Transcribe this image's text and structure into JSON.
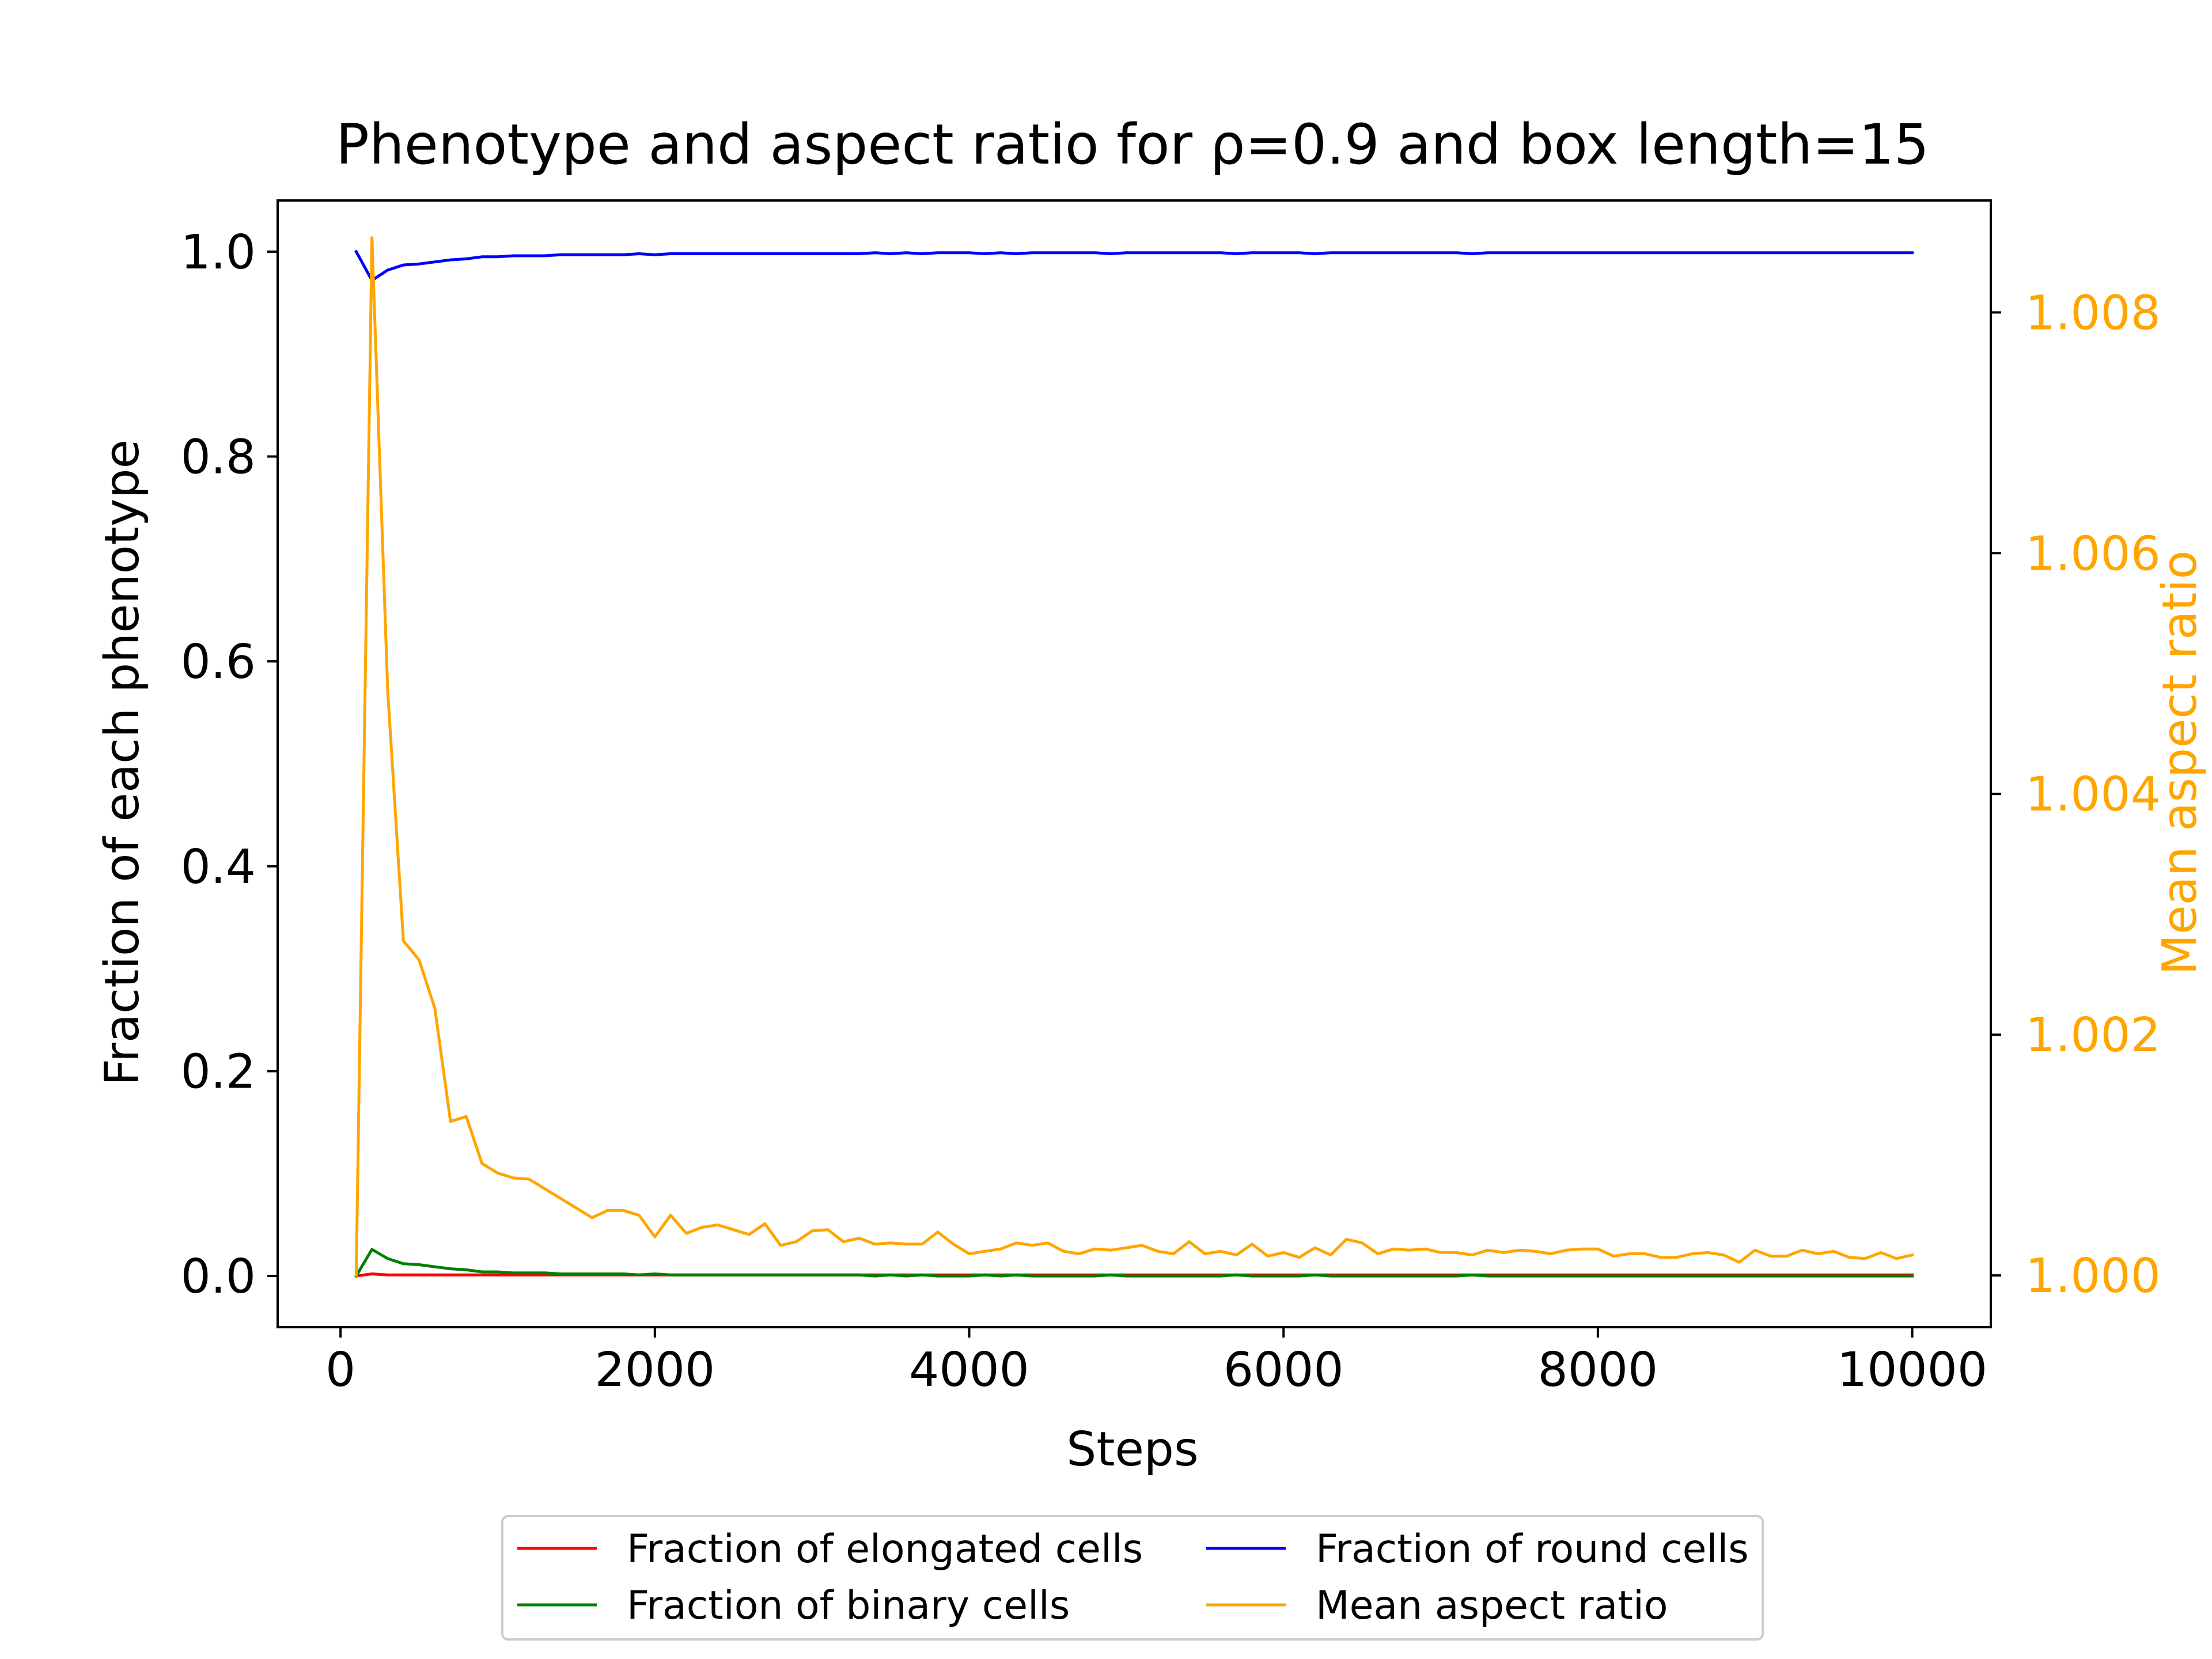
{
  "chart_data": {
    "type": "line",
    "title": "Phenotype and aspect ratio for ρ=0.9 and box length=15",
    "xlabel": "Steps",
    "ylabel": "Fraction of each phenotype",
    "y2label": "Mean aspect ratio",
    "xlim": [
      -400,
      10500
    ],
    "ylim": [
      -0.05,
      1.05
    ],
    "y2lim": [
      0.99957,
      1.00893
    ],
    "xticks": [
      0,
      2000,
      4000,
      6000,
      8000,
      10000
    ],
    "xtick_labels": [
      "0",
      "2000",
      "4000",
      "6000",
      "8000",
      "10000"
    ],
    "yticks": [
      0.0,
      0.2,
      0.4,
      0.6,
      0.8,
      1.0
    ],
    "ytick_labels": [
      "0.0",
      "0.2",
      "0.4",
      "0.6",
      "0.8",
      "1.0"
    ],
    "y2ticks": [
      1.0,
      1.002,
      1.004,
      1.006,
      1.008
    ],
    "y2tick_labels": [
      "1.000",
      "1.002",
      "1.004",
      "1.006",
      "1.008"
    ],
    "grid": false,
    "legend_position": "bottom-center-outside",
    "x_start": 100,
    "x_step": 100,
    "series": [
      {
        "name": "Fraction of elongated cells",
        "color": "#ff0000",
        "axis": "left",
        "values": [
          0.0,
          0.002,
          0.001,
          0.001,
          0.001,
          0.001,
          0.001,
          0.001,
          0.001,
          0.001,
          0.001,
          0.001,
          0.001,
          0.001,
          0.001,
          0.001,
          0.001,
          0.001,
          0.001,
          0.001,
          0.001,
          0.001,
          0.001,
          0.001,
          0.001,
          0.001,
          0.001,
          0.001,
          0.001,
          0.001,
          0.001,
          0.001,
          0.001,
          0.001,
          0.001,
          0.001,
          0.001,
          0.001,
          0.001,
          0.001,
          0.001,
          0.001,
          0.001,
          0.001,
          0.001,
          0.001,
          0.001,
          0.001,
          0.001,
          0.001,
          0.001,
          0.001,
          0.001,
          0.001,
          0.001,
          0.001,
          0.001,
          0.001,
          0.001,
          0.001,
          0.001,
          0.001,
          0.001,
          0.001,
          0.001,
          0.001,
          0.001,
          0.001,
          0.001,
          0.001,
          0.001,
          0.001,
          0.001,
          0.001,
          0.001,
          0.001,
          0.001,
          0.001,
          0.001,
          0.001,
          0.001,
          0.001,
          0.001,
          0.001,
          0.001,
          0.001,
          0.001,
          0.001,
          0.001,
          0.001,
          0.001,
          0.001,
          0.001,
          0.001,
          0.001,
          0.001,
          0.001,
          0.001,
          0.001,
          0.001
        ]
      },
      {
        "name": "Fraction of round cells",
        "color": "#0000ff",
        "axis": "left",
        "values": [
          1.0,
          0.972,
          0.982,
          0.987,
          0.988,
          0.99,
          0.992,
          0.993,
          0.995,
          0.995,
          0.996,
          0.996,
          0.996,
          0.997,
          0.997,
          0.997,
          0.997,
          0.997,
          0.998,
          0.997,
          0.998,
          0.998,
          0.998,
          0.998,
          0.998,
          0.998,
          0.998,
          0.998,
          0.998,
          0.998,
          0.998,
          0.998,
          0.998,
          0.999,
          0.998,
          0.999,
          0.998,
          0.999,
          0.999,
          0.999,
          0.998,
          0.999,
          0.998,
          0.999,
          0.999,
          0.999,
          0.999,
          0.999,
          0.998,
          0.999,
          0.999,
          0.999,
          0.999,
          0.999,
          0.999,
          0.999,
          0.998,
          0.999,
          0.999,
          0.999,
          0.999,
          0.998,
          0.999,
          0.999,
          0.999,
          0.999,
          0.999,
          0.999,
          0.999,
          0.999,
          0.999,
          0.998,
          0.999,
          0.999,
          0.999,
          0.999,
          0.999,
          0.999,
          0.999,
          0.999,
          0.999,
          0.999,
          0.999,
          0.999,
          0.999,
          0.999,
          0.999,
          0.999,
          0.999,
          0.999,
          0.999,
          0.999,
          0.999,
          0.999,
          0.999,
          0.999,
          0.999,
          0.999,
          0.999,
          0.999
        ]
      },
      {
        "name": "Fraction of binary cells",
        "color": "#008000",
        "axis": "left",
        "values": [
          0.0,
          0.026,
          0.017,
          0.012,
          0.011,
          0.009,
          0.007,
          0.006,
          0.004,
          0.004,
          0.003,
          0.003,
          0.003,
          0.002,
          0.002,
          0.002,
          0.002,
          0.002,
          0.001,
          0.002,
          0.001,
          0.001,
          0.001,
          0.001,
          0.001,
          0.001,
          0.001,
          0.001,
          0.001,
          0.001,
          0.001,
          0.001,
          0.001,
          0.0,
          0.001,
          0.0,
          0.001,
          0.0,
          0.0,
          0.0,
          0.001,
          0.0,
          0.001,
          0.0,
          0.0,
          0.0,
          0.0,
          0.0,
          0.001,
          0.0,
          0.0,
          0.0,
          0.0,
          0.0,
          0.0,
          0.0,
          0.001,
          0.0,
          0.0,
          0.0,
          0.0,
          0.001,
          0.0,
          0.0,
          0.0,
          0.0,
          0.0,
          0.0,
          0.0,
          0.0,
          0.0,
          0.001,
          0.0,
          0.0,
          0.0,
          0.0,
          0.0,
          0.0,
          0.0,
          0.0,
          0.0,
          0.0,
          0.0,
          0.0,
          0.0,
          0.0,
          0.0,
          0.0,
          0.0,
          0.0,
          0.0,
          0.0,
          0.0,
          0.0,
          0.0,
          0.0,
          0.0,
          0.0,
          0.0,
          0.0
        ]
      },
      {
        "name": "Mean aspect ratio",
        "color": "#ffa500",
        "axis": "right",
        "values": [
          1.0,
          1.00862,
          1.00486,
          1.00278,
          1.00262,
          1.00222,
          1.00128,
          1.00132,
          1.00093,
          1.00085,
          1.00081,
          1.0008,
          1.00072,
          1.00064,
          1.00056,
          1.00048,
          1.00054,
          1.00054,
          1.0005,
          1.00032,
          1.0005,
          1.00035,
          1.0004,
          1.00042,
          1.00038,
          1.00034,
          1.00043,
          1.00025,
          1.00028,
          1.00037,
          1.00038,
          1.00028,
          1.00031,
          1.00026,
          1.00027,
          1.00026,
          1.00026,
          1.00036,
          1.00026,
          1.00018,
          1.0002,
          1.00022,
          1.00027,
          1.00025,
          1.00027,
          1.0002,
          1.00018,
          1.00022,
          1.00021,
          1.00023,
          1.00025,
          1.0002,
          1.00018,
          1.00028,
          1.00018,
          1.0002,
          1.00017,
          1.00026,
          1.00016,
          1.00019,
          1.00015,
          1.00023,
          1.00017,
          1.0003,
          1.00027,
          1.00018,
          1.00022,
          1.00021,
          1.00022,
          1.00019,
          1.00019,
          1.00017,
          1.00021,
          1.00019,
          1.00021,
          1.0002,
          1.00018,
          1.00021,
          1.00022,
          1.00022,
          1.00016,
          1.00018,
          1.00018,
          1.00015,
          1.00015,
          1.00018,
          1.00019,
          1.00017,
          1.00011,
          1.00021,
          1.00016,
          1.00016,
          1.00021,
          1.00018,
          1.0002,
          1.00015,
          1.00014,
          1.00019,
          1.00014,
          1.00017
        ]
      }
    ],
    "legend_order": [
      0,
      2,
      1,
      3
    ]
  }
}
